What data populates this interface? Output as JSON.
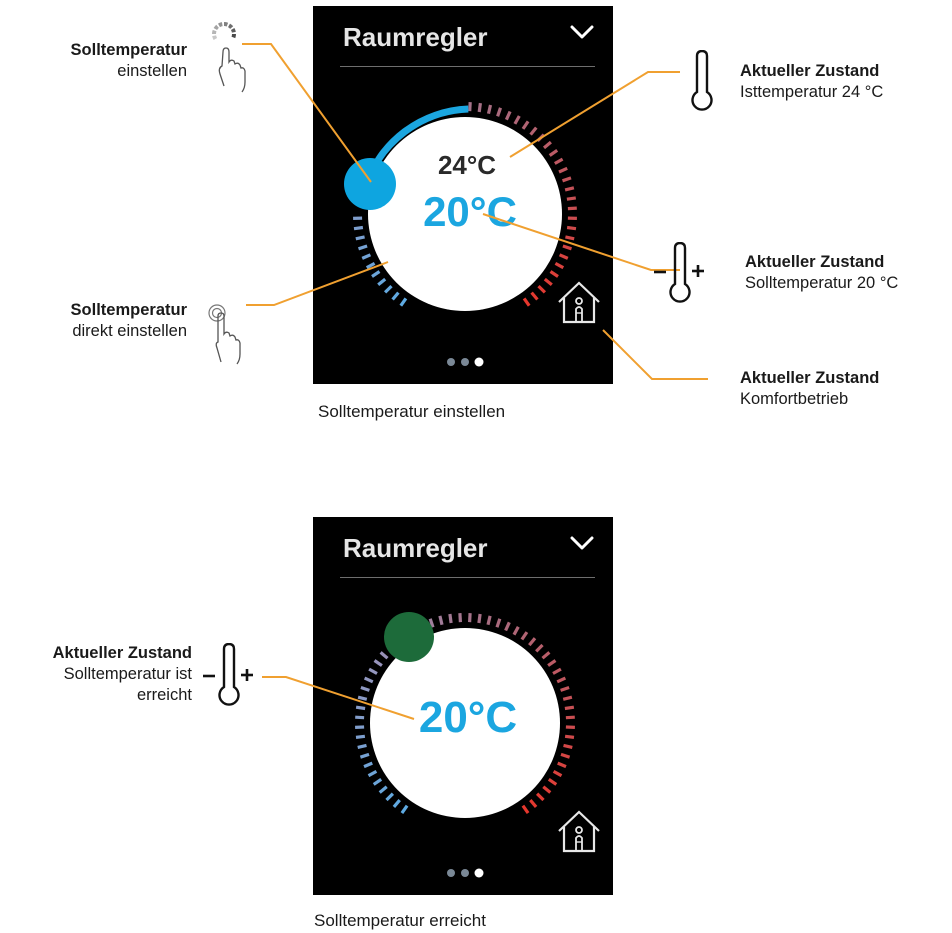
{
  "panel1": {
    "title": "Raumregler",
    "actual_temp": "24°C",
    "set_temp": "20°C",
    "knob_color": "#0ea5e0",
    "caption": "Solltemperatur einstellen"
  },
  "panel2": {
    "title": "Raumregler",
    "set_temp": "20°C",
    "knob_color": "#1d6b3a",
    "caption": "Solltemperatur erreicht"
  },
  "pager": {
    "active_index": 2,
    "count": 3
  },
  "annotations": {
    "set_dial": {
      "bold": "Solltemperatur",
      "text": "einstellen",
      "icon": "rotate-gesture-icon"
    },
    "set_direct": {
      "bold": "Solltemperatur",
      "text": "direkt einstellen",
      "icon": "tap-gesture-icon"
    },
    "actual": {
      "bold": "Aktueller Zustand",
      "text": "Isttemperatur 24 °C",
      "icon": "thermometer-icon"
    },
    "setpoint": {
      "bold": "Aktueller Zustand",
      "text": "Solltemperatur 20 °C",
      "icon": "thermometer-plus-minus-icon"
    },
    "comfort": {
      "bold": "Aktueller Zustand",
      "text": "Komfortbetrieb",
      "icon": "home-comfort-icon"
    },
    "reached": {
      "bold": "Aktueller Zustand",
      "text1": "Solltemperatur ist",
      "text2": "erreicht",
      "icon": "thermometer-plus-minus-icon"
    }
  },
  "colors": {
    "callout": "#f0a030",
    "accent_blue": "#1ba6e0",
    "panel_bg": "#000000"
  }
}
